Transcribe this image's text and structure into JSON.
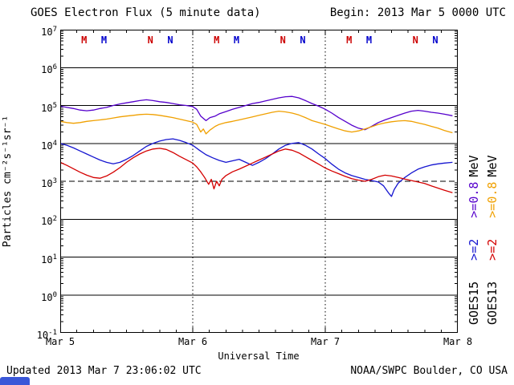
{
  "header": {
    "title": "GOES Electron Flux (5 minute data)",
    "begin_label": "Begin: 2013 Mar 5 0000 UTC"
  },
  "footer": {
    "updated": "Updated 2013 Mar 7 23:06:02 UTC",
    "credit": "NOAA/SWPC Boulder, CO USA"
  },
  "chart_data": {
    "type": "line",
    "title": "GOES Electron Flux (5 minute data)",
    "xlabel": "Universal Time",
    "ylabel": "Particles cm⁻²s⁻¹sr⁻¹",
    "x_ticks": [
      "Mar 5",
      "Mar 6",
      "Mar 7",
      "Mar 8"
    ],
    "x_range_days": [
      0,
      3
    ],
    "y_log_range": [
      -1,
      7
    ],
    "y_scale": "log10 particles cm-2 s-1 sr-1",
    "threshold_line_exp": 3,
    "day_gridlines": [
      1,
      2
    ],
    "grid": "solid horizontal line each decade, dashed at 1e3, dotted vertical at day boundaries",
    "series": [
      {
        "name": "GOES15 >=0.8 MeV",
        "color": "#5500cc",
        "points_log10": [
          [
            0,
            4.98
          ],
          [
            0.05,
            4.95
          ],
          [
            0.1,
            4.92
          ],
          [
            0.15,
            4.88
          ],
          [
            0.2,
            4.86
          ],
          [
            0.25,
            4.88
          ],
          [
            0.3,
            4.92
          ],
          [
            0.35,
            4.95
          ],
          [
            0.4,
            5
          ],
          [
            0.45,
            5.04
          ],
          [
            0.5,
            5.07
          ],
          [
            0.55,
            5.1
          ],
          [
            0.6,
            5.13
          ],
          [
            0.65,
            5.15
          ],
          [
            0.7,
            5.13
          ],
          [
            0.75,
            5.1
          ],
          [
            0.8,
            5.08
          ],
          [
            0.85,
            5.05
          ],
          [
            0.9,
            5.02
          ],
          [
            0.95,
            5
          ],
          [
            1,
            4.97
          ],
          [
            1.03,
            4.9
          ],
          [
            1.06,
            4.72
          ],
          [
            1.1,
            4.6
          ],
          [
            1.13,
            4.68
          ],
          [
            1.17,
            4.72
          ],
          [
            1.2,
            4.78
          ],
          [
            1.25,
            4.84
          ],
          [
            1.3,
            4.9
          ],
          [
            1.35,
            4.95
          ],
          [
            1.4,
            5
          ],
          [
            1.45,
            5.05
          ],
          [
            1.5,
            5.08
          ],
          [
            1.55,
            5.12
          ],
          [
            1.6,
            5.16
          ],
          [
            1.65,
            5.2
          ],
          [
            1.7,
            5.23
          ],
          [
            1.75,
            5.24
          ],
          [
            1.8,
            5.2
          ],
          [
            1.85,
            5.13
          ],
          [
            1.9,
            5.05
          ],
          [
            1.95,
            4.98
          ],
          [
            2,
            4.9
          ],
          [
            2.05,
            4.8
          ],
          [
            2.1,
            4.68
          ],
          [
            2.15,
            4.58
          ],
          [
            2.2,
            4.48
          ],
          [
            2.25,
            4.4
          ],
          [
            2.3,
            4.36
          ],
          [
            2.35,
            4.45
          ],
          [
            2.4,
            4.55
          ],
          [
            2.45,
            4.62
          ],
          [
            2.5,
            4.68
          ],
          [
            2.55,
            4.74
          ],
          [
            2.6,
            4.8
          ],
          [
            2.65,
            4.85
          ],
          [
            2.7,
            4.87
          ],
          [
            2.75,
            4.85
          ],
          [
            2.8,
            4.82
          ],
          [
            2.85,
            4.8
          ],
          [
            2.9,
            4.77
          ],
          [
            2.96,
            4.73
          ]
        ]
      },
      {
        "name": "GOES13 >=0.8 MeV",
        "color": "#f0a000",
        "points_log10": [
          [
            0,
            4.58
          ],
          [
            0.05,
            4.55
          ],
          [
            0.1,
            4.53
          ],
          [
            0.15,
            4.55
          ],
          [
            0.2,
            4.58
          ],
          [
            0.25,
            4.6
          ],
          [
            0.3,
            4.62
          ],
          [
            0.35,
            4.64
          ],
          [
            0.4,
            4.67
          ],
          [
            0.45,
            4.7
          ],
          [
            0.5,
            4.72
          ],
          [
            0.55,
            4.74
          ],
          [
            0.6,
            4.76
          ],
          [
            0.65,
            4.77
          ],
          [
            0.7,
            4.76
          ],
          [
            0.75,
            4.74
          ],
          [
            0.8,
            4.71
          ],
          [
            0.85,
            4.68
          ],
          [
            0.9,
            4.64
          ],
          [
            0.95,
            4.6
          ],
          [
            1,
            4.56
          ],
          [
            1.03,
            4.5
          ],
          [
            1.06,
            4.3
          ],
          [
            1.08,
            4.38
          ],
          [
            1.1,
            4.25
          ],
          [
            1.13,
            4.35
          ],
          [
            1.17,
            4.45
          ],
          [
            1.2,
            4.5
          ],
          [
            1.25,
            4.55
          ],
          [
            1.3,
            4.58
          ],
          [
            1.35,
            4.62
          ],
          [
            1.4,
            4.66
          ],
          [
            1.45,
            4.7
          ],
          [
            1.5,
            4.74
          ],
          [
            1.55,
            4.78
          ],
          [
            1.6,
            4.82
          ],
          [
            1.65,
            4.85
          ],
          [
            1.7,
            4.83
          ],
          [
            1.75,
            4.8
          ],
          [
            1.8,
            4.75
          ],
          [
            1.85,
            4.68
          ],
          [
            1.9,
            4.6
          ],
          [
            1.95,
            4.55
          ],
          [
            2,
            4.5
          ],
          [
            2.05,
            4.44
          ],
          [
            2.1,
            4.38
          ],
          [
            2.15,
            4.33
          ],
          [
            2.2,
            4.3
          ],
          [
            2.25,
            4.33
          ],
          [
            2.3,
            4.38
          ],
          [
            2.35,
            4.44
          ],
          [
            2.4,
            4.5
          ],
          [
            2.45,
            4.54
          ],
          [
            2.5,
            4.57
          ],
          [
            2.55,
            4.59
          ],
          [
            2.6,
            4.6
          ],
          [
            2.65,
            4.58
          ],
          [
            2.7,
            4.54
          ],
          [
            2.75,
            4.5
          ],
          [
            2.8,
            4.45
          ],
          [
            2.85,
            4.4
          ],
          [
            2.9,
            4.34
          ],
          [
            2.96,
            4.28
          ]
        ]
      },
      {
        "name": "GOES15 >=2 MeV",
        "color": "#1515d0",
        "points_log10": [
          [
            0,
            4
          ],
          [
            0.05,
            3.95
          ],
          [
            0.1,
            3.88
          ],
          [
            0.15,
            3.8
          ],
          [
            0.2,
            3.72
          ],
          [
            0.25,
            3.64
          ],
          [
            0.3,
            3.56
          ],
          [
            0.35,
            3.5
          ],
          [
            0.4,
            3.46
          ],
          [
            0.45,
            3.5
          ],
          [
            0.5,
            3.58
          ],
          [
            0.55,
            3.68
          ],
          [
            0.6,
            3.8
          ],
          [
            0.65,
            3.92
          ],
          [
            0.7,
            4
          ],
          [
            0.75,
            4.06
          ],
          [
            0.8,
            4.1
          ],
          [
            0.85,
            4.12
          ],
          [
            0.9,
            4.08
          ],
          [
            0.95,
            4.02
          ],
          [
            1,
            3.95
          ],
          [
            1.05,
            3.82
          ],
          [
            1.1,
            3.7
          ],
          [
            1.15,
            3.62
          ],
          [
            1.2,
            3.55
          ],
          [
            1.25,
            3.5
          ],
          [
            1.3,
            3.54
          ],
          [
            1.35,
            3.58
          ],
          [
            1.4,
            3.5
          ],
          [
            1.45,
            3.42
          ],
          [
            1.5,
            3.5
          ],
          [
            1.55,
            3.6
          ],
          [
            1.6,
            3.72
          ],
          [
            1.65,
            3.85
          ],
          [
            1.7,
            3.95
          ],
          [
            1.75,
            4
          ],
          [
            1.8,
            4.02
          ],
          [
            1.85,
            3.95
          ],
          [
            1.9,
            3.85
          ],
          [
            1.95,
            3.72
          ],
          [
            2,
            3.6
          ],
          [
            2.05,
            3.45
          ],
          [
            2.1,
            3.32
          ],
          [
            2.15,
            3.22
          ],
          [
            2.2,
            3.15
          ],
          [
            2.25,
            3.1
          ],
          [
            2.3,
            3.05
          ],
          [
            2.35,
            3.02
          ],
          [
            2.4,
            2.98
          ],
          [
            2.44,
            2.88
          ],
          [
            2.48,
            2.68
          ],
          [
            2.5,
            2.6
          ],
          [
            2.52,
            2.78
          ],
          [
            2.55,
            2.95
          ],
          [
            2.6,
            3.1
          ],
          [
            2.65,
            3.22
          ],
          [
            2.7,
            3.32
          ],
          [
            2.75,
            3.38
          ],
          [
            2.8,
            3.43
          ],
          [
            2.85,
            3.46
          ],
          [
            2.9,
            3.48
          ],
          [
            2.96,
            3.5
          ]
        ]
      },
      {
        "name": "GOES13 >=2 MeV",
        "color": "#d40000",
        "points_log10": [
          [
            0,
            3.5
          ],
          [
            0.05,
            3.42
          ],
          [
            0.1,
            3.33
          ],
          [
            0.15,
            3.24
          ],
          [
            0.2,
            3.16
          ],
          [
            0.25,
            3.1
          ],
          [
            0.3,
            3.08
          ],
          [
            0.35,
            3.14
          ],
          [
            0.4,
            3.24
          ],
          [
            0.45,
            3.36
          ],
          [
            0.5,
            3.5
          ],
          [
            0.55,
            3.62
          ],
          [
            0.6,
            3.72
          ],
          [
            0.65,
            3.8
          ],
          [
            0.7,
            3.85
          ],
          [
            0.75,
            3.87
          ],
          [
            0.8,
            3.84
          ],
          [
            0.85,
            3.76
          ],
          [
            0.9,
            3.66
          ],
          [
            0.95,
            3.57
          ],
          [
            1,
            3.48
          ],
          [
            1.03,
            3.38
          ],
          [
            1.06,
            3.25
          ],
          [
            1.09,
            3.1
          ],
          [
            1.12,
            2.92
          ],
          [
            1.14,
            3.05
          ],
          [
            1.16,
            2.8
          ],
          [
            1.18,
            3
          ],
          [
            1.2,
            2.88
          ],
          [
            1.22,
            3.05
          ],
          [
            1.25,
            3.15
          ],
          [
            1.3,
            3.25
          ],
          [
            1.35,
            3.32
          ],
          [
            1.4,
            3.4
          ],
          [
            1.45,
            3.48
          ],
          [
            1.5,
            3.56
          ],
          [
            1.55,
            3.64
          ],
          [
            1.6,
            3.72
          ],
          [
            1.65,
            3.8
          ],
          [
            1.7,
            3.85
          ],
          [
            1.75,
            3.82
          ],
          [
            1.8,
            3.75
          ],
          [
            1.85,
            3.65
          ],
          [
            1.9,
            3.55
          ],
          [
            1.95,
            3.45
          ],
          [
            2,
            3.35
          ],
          [
            2.05,
            3.27
          ],
          [
            2.1,
            3.2
          ],
          [
            2.15,
            3.13
          ],
          [
            2.2,
            3.07
          ],
          [
            2.25,
            3.03
          ],
          [
            2.3,
            3
          ],
          [
            2.35,
            3.05
          ],
          [
            2.4,
            3.12
          ],
          [
            2.45,
            3.16
          ],
          [
            2.5,
            3.14
          ],
          [
            2.55,
            3.1
          ],
          [
            2.6,
            3.06
          ],
          [
            2.65,
            3.02
          ],
          [
            2.7,
            2.98
          ],
          [
            2.75,
            2.94
          ],
          [
            2.8,
            2.88
          ],
          [
            2.85,
            2.82
          ],
          [
            2.9,
            2.76
          ],
          [
            2.96,
            2.7
          ]
        ]
      }
    ],
    "markers": [
      {
        "x": 0.18,
        "label": "M",
        "color": "#cc0000"
      },
      {
        "x": 0.33,
        "label": "M",
        "color": "#0000cc"
      },
      {
        "x": 0.68,
        "label": "N",
        "color": "#cc0000"
      },
      {
        "x": 0.83,
        "label": "N",
        "color": "#0000cc"
      },
      {
        "x": 1.18,
        "label": "M",
        "color": "#cc0000"
      },
      {
        "x": 1.33,
        "label": "M",
        "color": "#0000cc"
      },
      {
        "x": 1.68,
        "label": "N",
        "color": "#cc0000"
      },
      {
        "x": 1.83,
        "label": "N",
        "color": "#0000cc"
      },
      {
        "x": 2.18,
        "label": "M",
        "color": "#cc0000"
      },
      {
        "x": 2.33,
        "label": "M",
        "color": "#0000cc"
      },
      {
        "x": 2.68,
        "label": "N",
        "color": "#cc0000"
      },
      {
        "x": 2.83,
        "label": "N",
        "color": "#0000cc"
      }
    ],
    "legend_columns": [
      {
        "segments": [
          {
            "text": "GOES15",
            "color": "#000000"
          },
          {
            "text": ">=2",
            "color": "#1515d0"
          },
          {
            "text": ">=0.8",
            "color": "#5500cc"
          },
          {
            "text": "MeV",
            "color": "#000000"
          }
        ]
      },
      {
        "segments": [
          {
            "text": "GOES13",
            "color": "#000000"
          },
          {
            "text": ">=2",
            "color": "#d40000"
          },
          {
            "text": ">=0.8",
            "color": "#f0a000"
          },
          {
            "text": "MeV",
            "color": "#000000"
          }
        ]
      }
    ]
  }
}
